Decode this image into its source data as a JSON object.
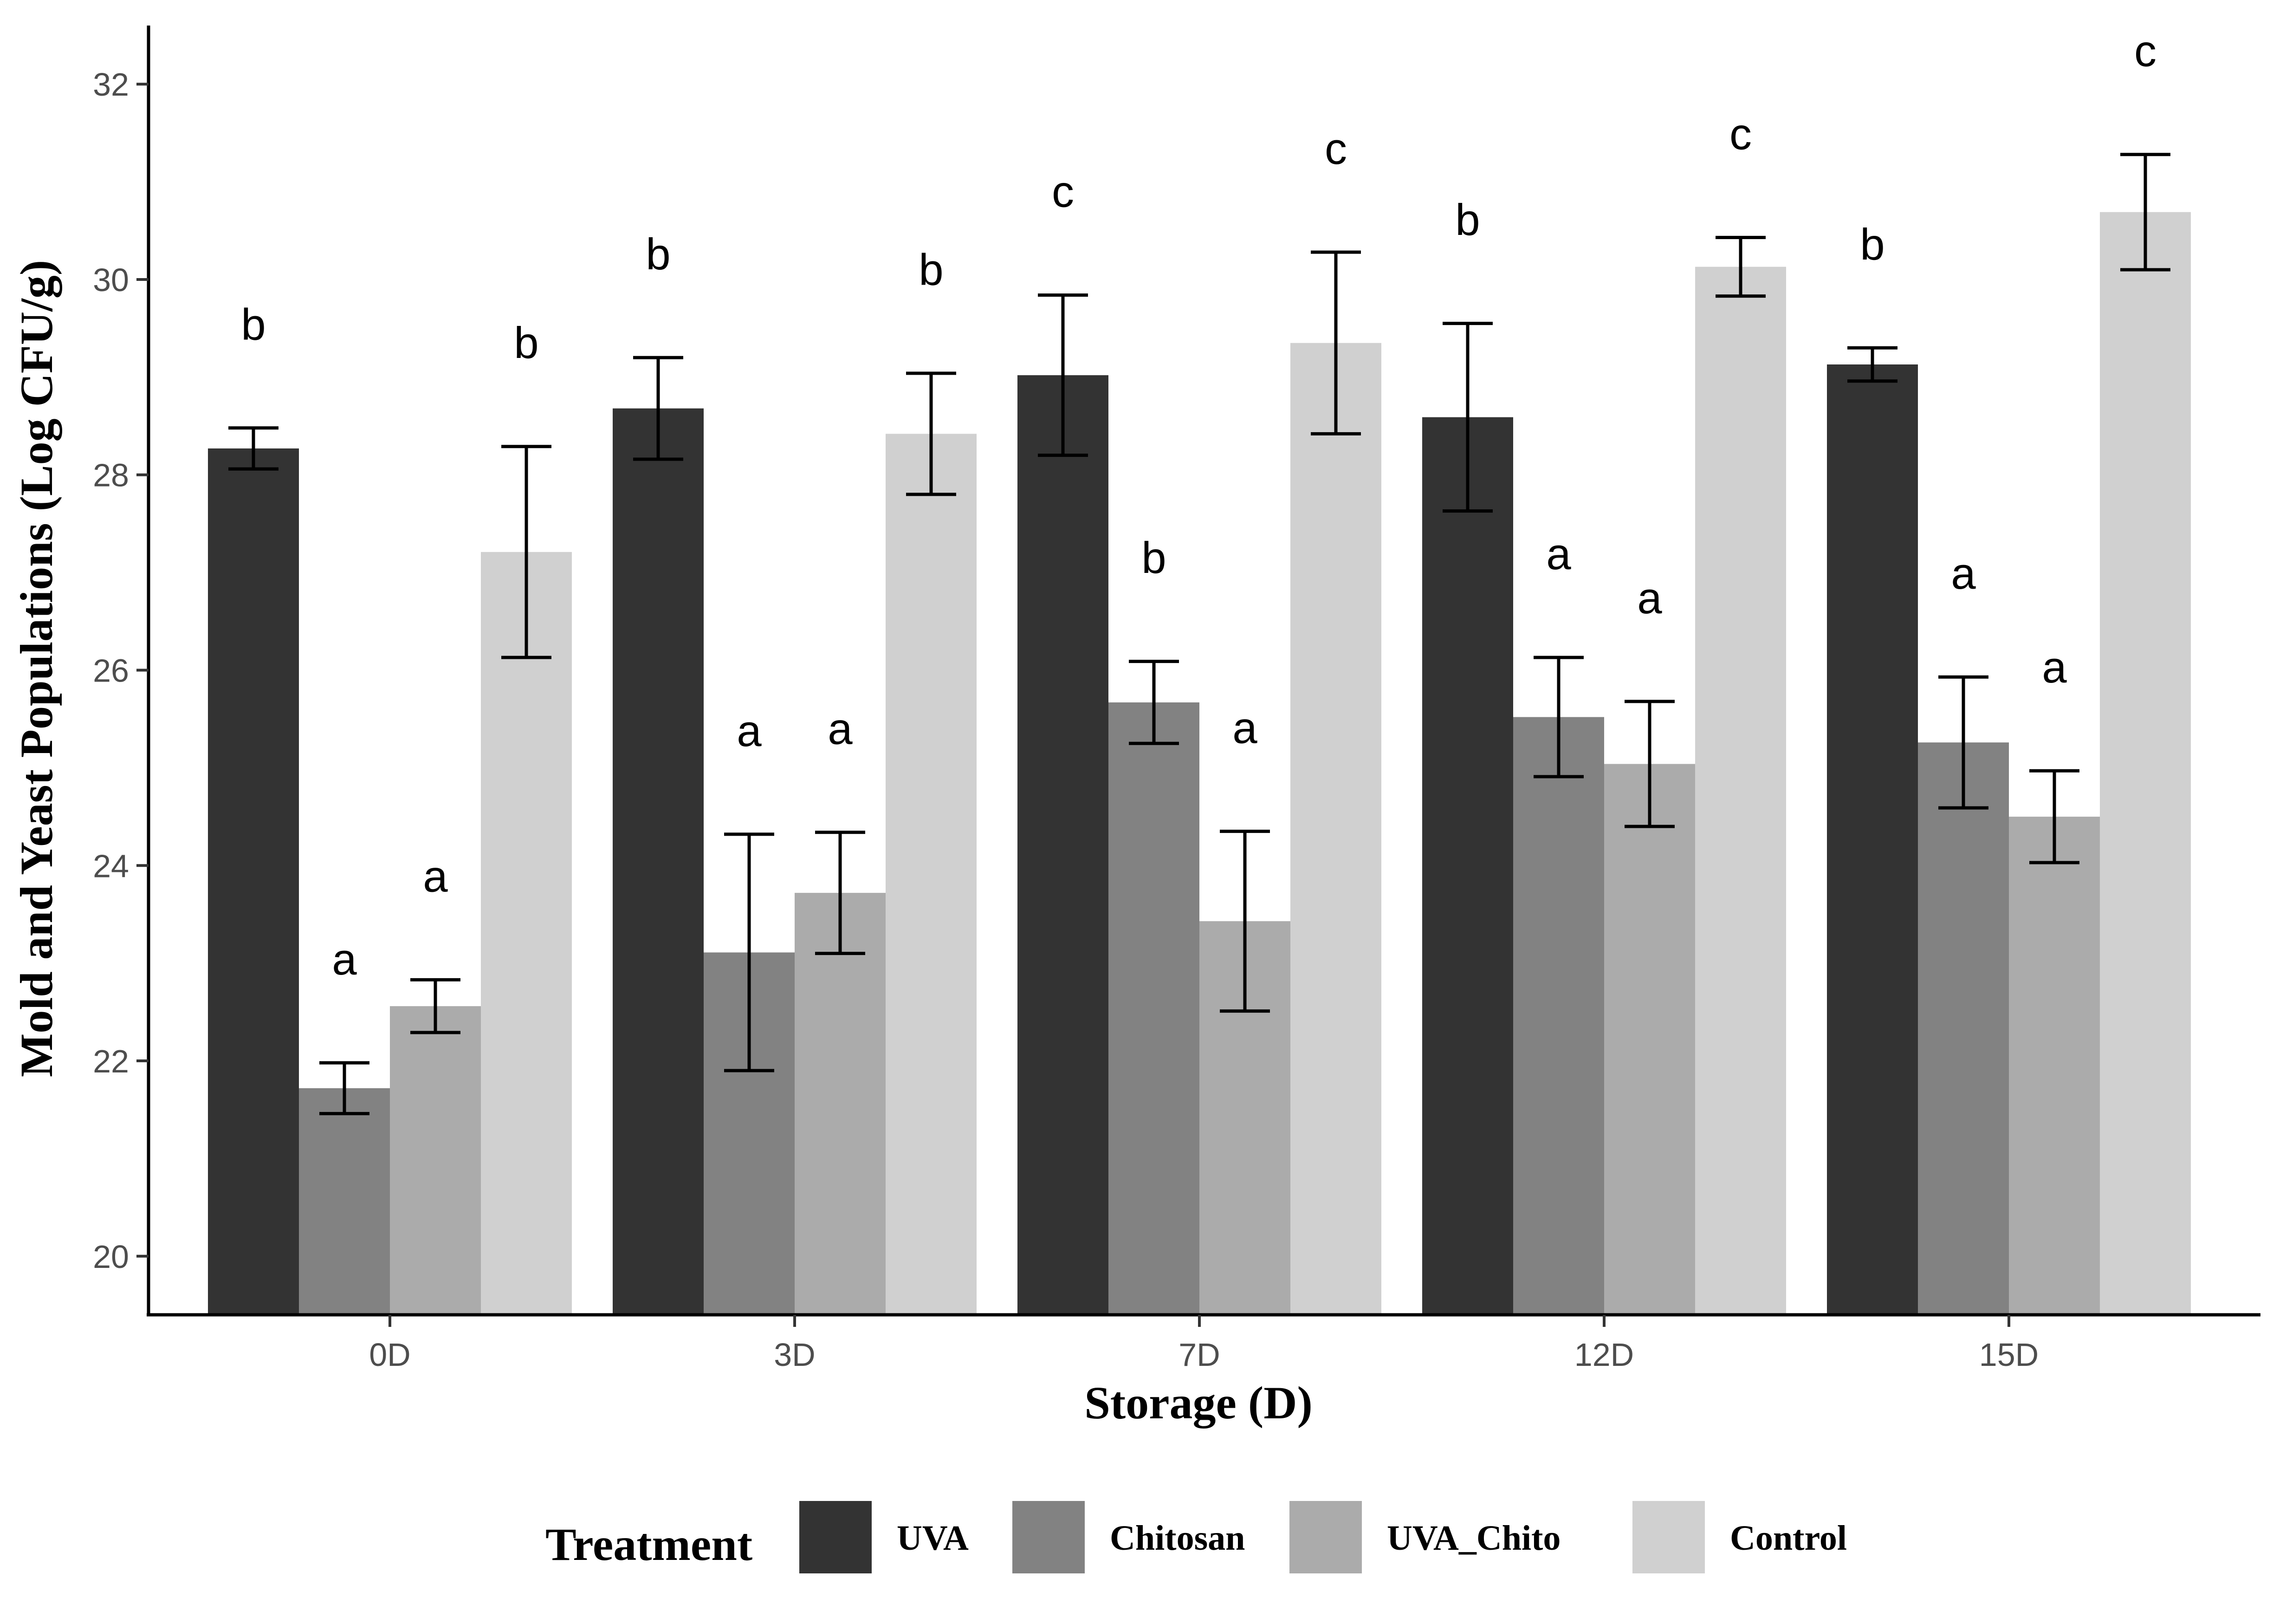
{
  "chart_data": {
    "type": "bar",
    "title": "",
    "xlabel": "Storage (D)",
    "ylabel": "Mold and Yeast Populations (Log CFU/g)",
    "ylim": [
      19.4,
      32.6
    ],
    "yticks": [
      20,
      22,
      24,
      26,
      28,
      30,
      32
    ],
    "categories": [
      "0D",
      "3D",
      "7D",
      "12D",
      "15D"
    ],
    "series": [
      {
        "name": "UVA",
        "color": "#333333",
        "values": [
          28.27,
          28.68,
          29.02,
          28.59,
          29.13
        ],
        "errors": [
          0.21,
          0.52,
          0.82,
          0.96,
          0.17
        ],
        "labels": [
          "b",
          "b",
          "c",
          "b",
          "b"
        ]
      },
      {
        "name": "Chitosan",
        "color": "#828282",
        "values": [
          21.72,
          23.11,
          25.67,
          25.52,
          25.26
        ],
        "errors": [
          0.26,
          1.21,
          0.42,
          0.61,
          0.67
        ],
        "labels": [
          "a",
          "a",
          "b",
          "a",
          "a"
        ]
      },
      {
        "name": "UVA_Chito",
        "color": "#ababab",
        "values": [
          22.56,
          23.72,
          23.43,
          25.04,
          24.5
        ],
        "errors": [
          0.27,
          0.62,
          0.92,
          0.64,
          0.47
        ],
        "labels": [
          "a",
          "a",
          "a",
          "a",
          "a"
        ]
      },
      {
        "name": "Control",
        "color": "#d0d0d0",
        "values": [
          27.21,
          28.42,
          29.35,
          30.13,
          30.69
        ],
        "errors": [
          1.08,
          0.62,
          0.93,
          0.3,
          0.59
        ],
        "labels": [
          "b",
          "b",
          "c",
          "c",
          "c"
        ]
      }
    ],
    "legend": {
      "title": "Treatment",
      "position": "bottom"
    },
    "grid": false
  }
}
